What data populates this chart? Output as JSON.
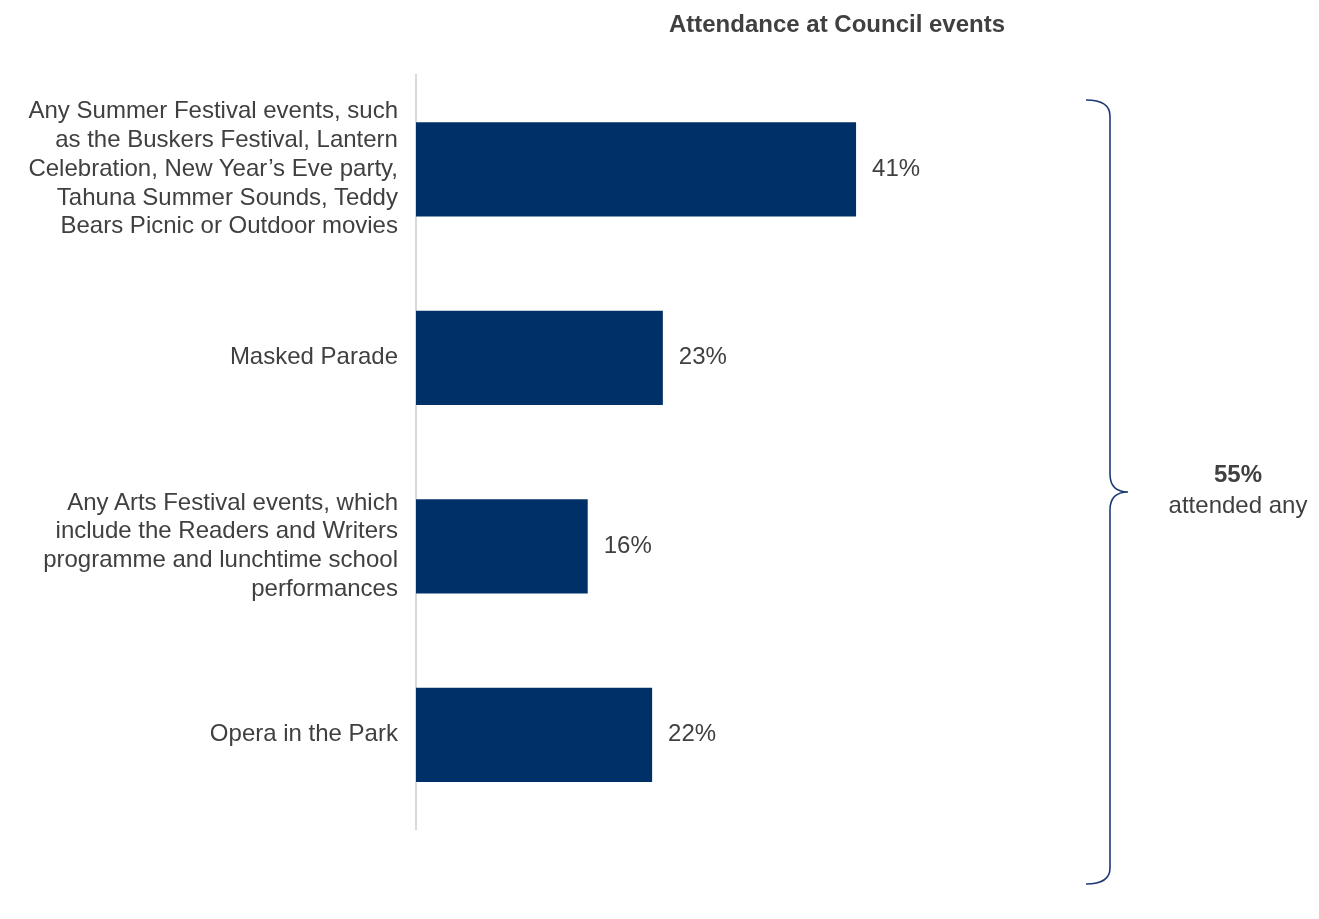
{
  "chart_data": {
    "type": "bar",
    "orientation": "horizontal",
    "title": "Attendance at Council events",
    "categories": [
      "Any Summer Festival events, such as the Buskers Festival, Lantern Celebration, New Year’s Eve party, Tahuna Summer Sounds, Teddy Bears Picnic or Outdoor movies",
      "Masked Parade",
      "Any Arts Festival events, which include the Readers and Writers programme and lunchtime school performances",
      "Opera in the Park"
    ],
    "values": [
      41,
      23,
      16,
      22
    ],
    "value_labels": [
      "41%",
      "23%",
      "16%",
      "22%"
    ],
    "color": "#003068",
    "grid": false,
    "legend": false,
    "annotations": [
      "55%",
      "attended any"
    ]
  }
}
